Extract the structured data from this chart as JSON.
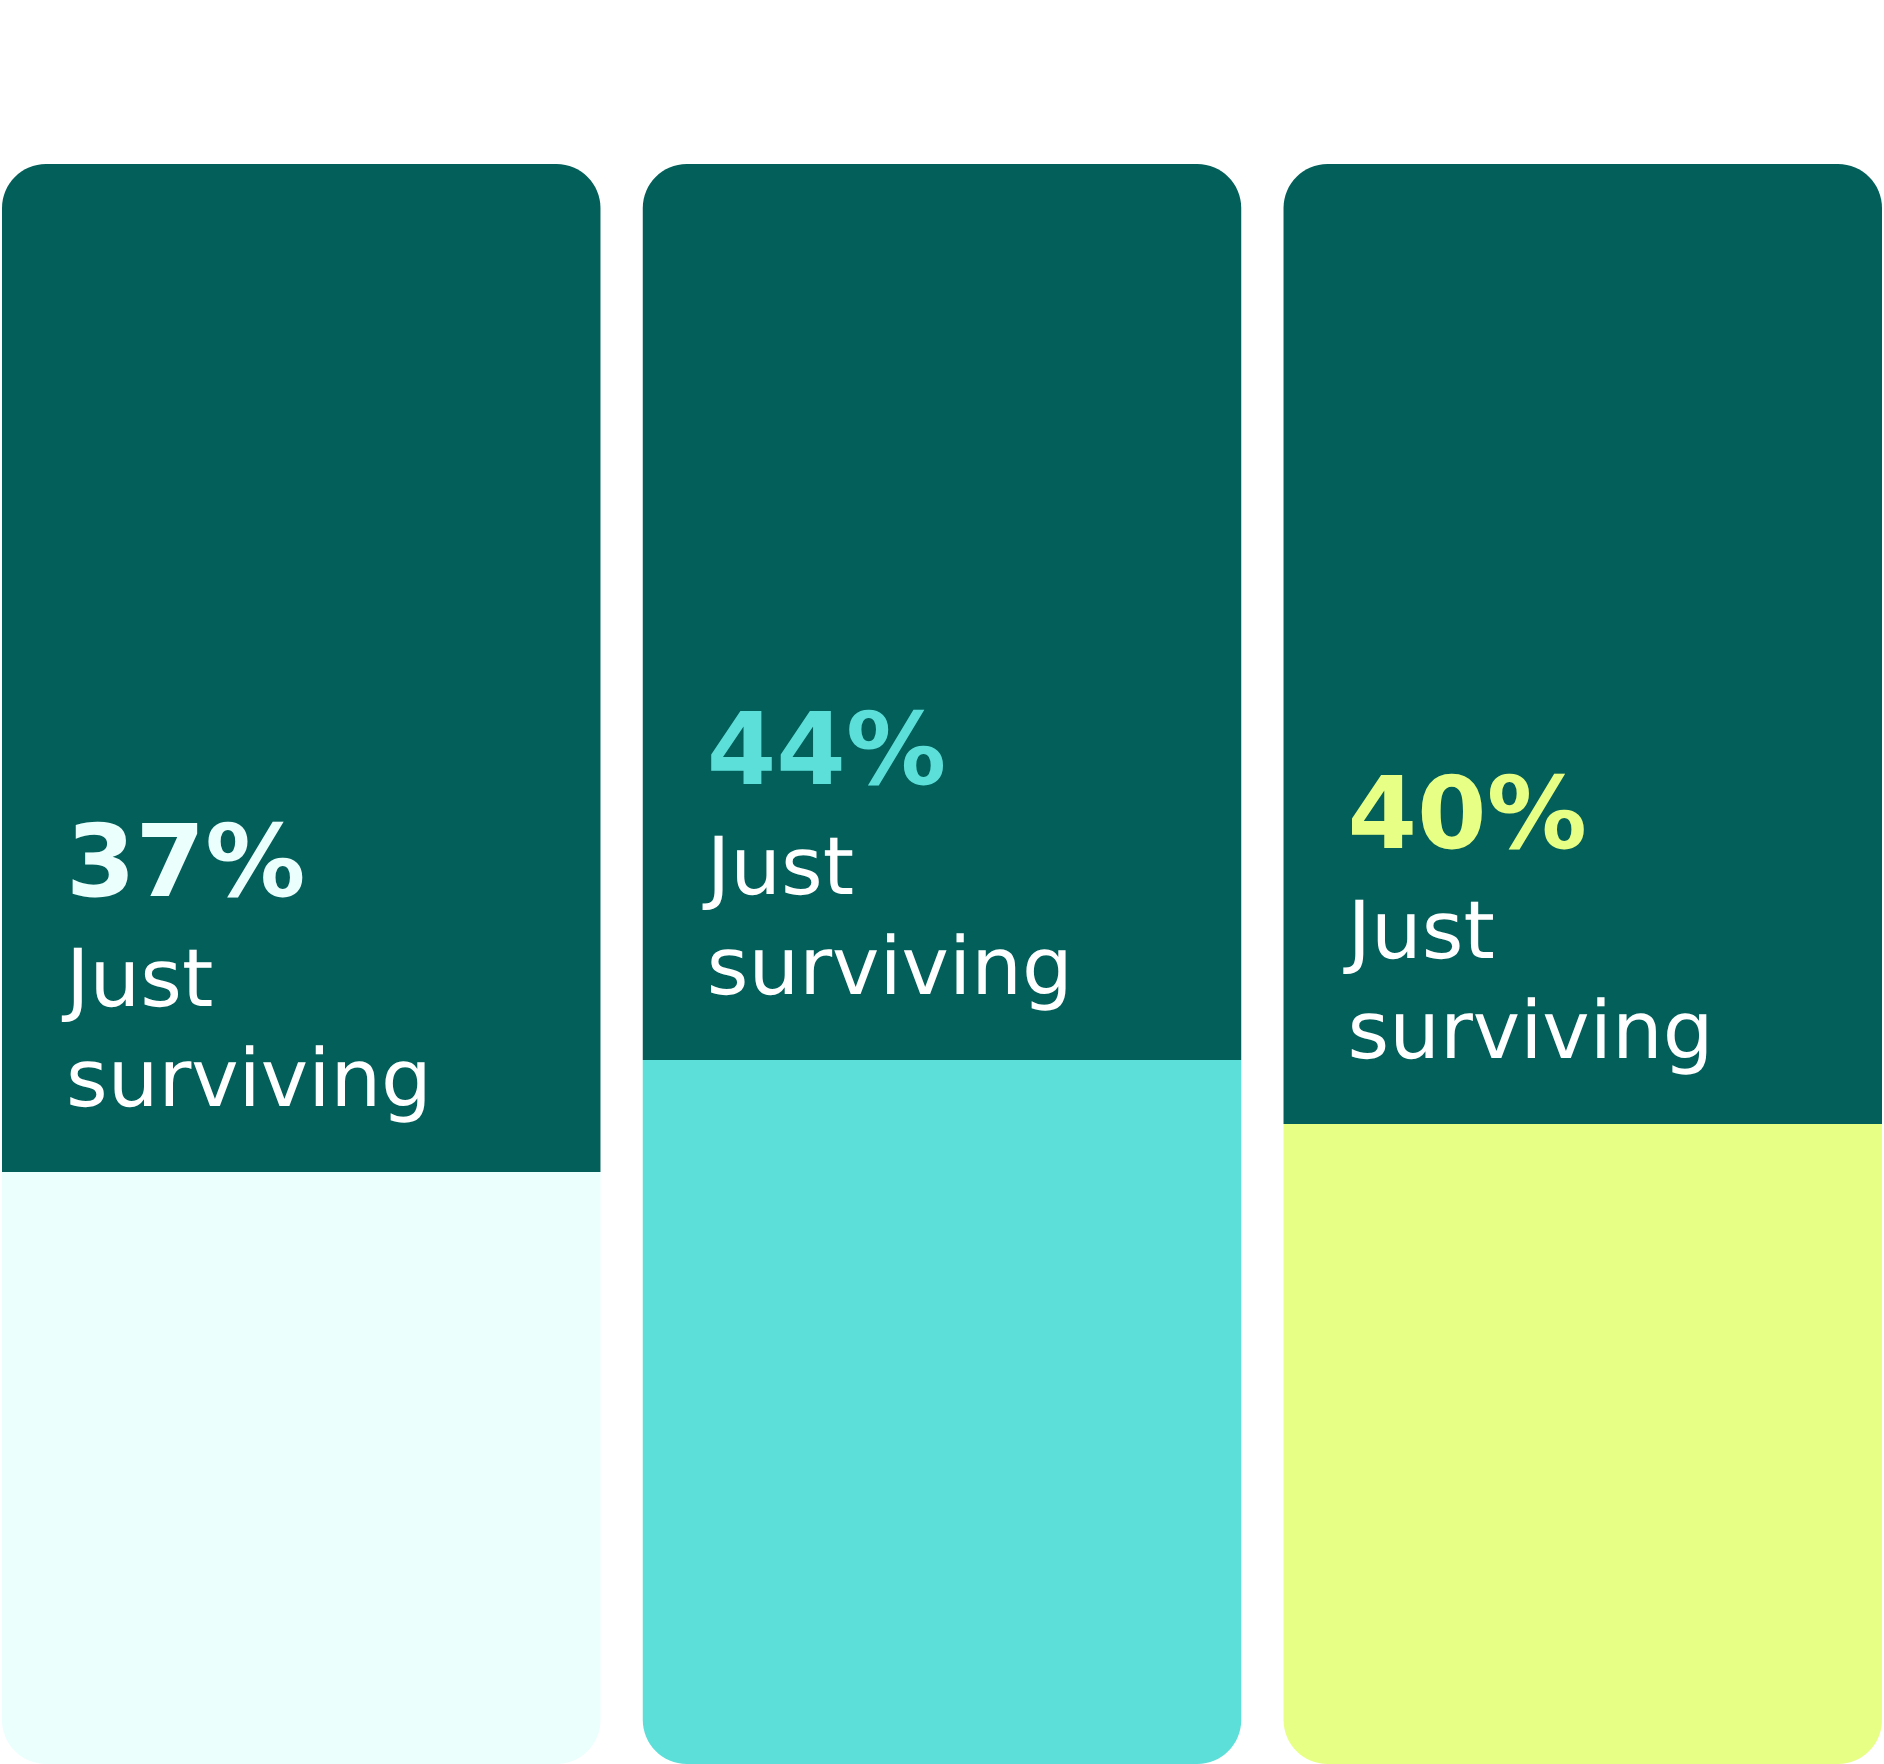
{
  "chart_data": {
    "type": "bar",
    "stacked": true,
    "categories": [
      null,
      null,
      null
    ],
    "ylim": [
      0,
      100
    ],
    "series": [
      {
        "name": "Just surviving",
        "colors": [
          "#ebfffd",
          "#5ddfd9",
          "#e8ff85"
        ],
        "values": [
          37,
          44,
          40
        ],
        "value_labels": [
          "37%",
          "44%",
          "40%"
        ]
      },
      {
        "color": "#025f5a",
        "values": [
          63,
          56,
          60
        ]
      }
    ]
  }
}
